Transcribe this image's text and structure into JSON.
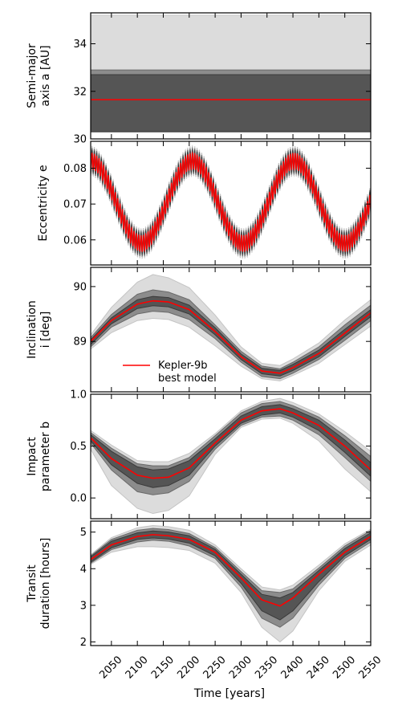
{
  "colors": {
    "outer_band": "#dcdcdc",
    "mid_band": "#8c8c8c",
    "inner_band": "#555555",
    "best_model": "#ff0000",
    "axes": "#000000"
  },
  "x_axis": {
    "label": "Time [years]",
    "range": [
      2010,
      2550
    ],
    "ticks": [
      2050,
      2100,
      2150,
      2200,
      2250,
      2300,
      2350,
      2400,
      2450,
      2500,
      2550
    ],
    "tick_labels": [
      "2050",
      "2100",
      "2150",
      "2200",
      "2250",
      "2300",
      "2350",
      "2400",
      "2450",
      "2500",
      "2550"
    ]
  },
  "legend": {
    "label_line1": "Kepler-9b",
    "label_line2": "best model",
    "panel": "inclination",
    "placement": "lower-left"
  },
  "chart_data": [
    {
      "id": "semimajor",
      "type": "area",
      "ylabel_line1": "Semi-major",
      "ylabel_line2": "axis a [AU]",
      "ylim": [
        30.0,
        35.3
      ],
      "yticks": [
        30,
        32,
        34
      ],
      "ytick_labels": [
        "30",
        "32",
        "34"
      ],
      "x": [
        2010,
        2550
      ],
      "best": [
        31.65,
        31.65
      ],
      "inner": [
        [
          30.3,
          32.7
        ],
        [
          30.3,
          32.7
        ]
      ],
      "mid": [
        [
          30.3,
          32.9
        ],
        [
          30.3,
          32.9
        ]
      ],
      "outer": [
        [
          30.3,
          35.2
        ],
        [
          30.3,
          35.2
        ]
      ]
    },
    {
      "id": "eccentricity",
      "type": "area",
      "ylabel_line1": "",
      "ylabel_line2": "Eccentricity e",
      "ylim": [
        0.053,
        0.0875
      ],
      "yticks": [
        0.06,
        0.07,
        0.08
      ],
      "ytick_labels": [
        "0.06",
        "0.07",
        "0.08"
      ],
      "oscillation": {
        "center": 0.0705,
        "long_amplitude": 0.0115,
        "long_period_years": 196,
        "long_phase_year": 2108,
        "short_amplitude": 0.0023,
        "short_period_years": 4.5
      },
      "band_halfwidths": {
        "inner": 0.0008,
        "mid": 0.0013,
        "outer": 0.0019
      }
    },
    {
      "id": "inclination",
      "type": "area",
      "ylabel_line1": "Inclination",
      "ylabel_line2": "i [deg]",
      "ylim": [
        88.08,
        90.35
      ],
      "yticks": [
        89,
        90
      ],
      "ytick_labels": [
        "89",
        "90"
      ],
      "x": [
        2010,
        2050,
        2100,
        2130,
        2160,
        2200,
        2250,
        2300,
        2340,
        2375,
        2400,
        2450,
        2500,
        2550
      ],
      "best": [
        89.0,
        89.38,
        89.68,
        89.74,
        89.72,
        89.58,
        89.18,
        88.72,
        88.46,
        88.42,
        88.52,
        88.78,
        89.15,
        89.52
      ],
      "inner": [
        [
          88.94,
          89.03
        ],
        [
          89.32,
          89.43
        ],
        [
          89.6,
          89.76
        ],
        [
          89.65,
          89.82
        ],
        [
          89.63,
          89.8
        ],
        [
          89.5,
          89.66
        ],
        [
          89.12,
          89.25
        ],
        [
          88.67,
          88.77
        ],
        [
          88.41,
          88.51
        ],
        [
          88.37,
          88.47
        ],
        [
          88.47,
          88.58
        ],
        [
          88.72,
          88.84
        ],
        [
          89.09,
          89.22
        ],
        [
          89.45,
          89.58
        ]
      ],
      "mid": [
        [
          88.9,
          89.07
        ],
        [
          89.26,
          89.49
        ],
        [
          89.5,
          89.86
        ],
        [
          89.55,
          89.94
        ],
        [
          89.53,
          89.9
        ],
        [
          89.4,
          89.76
        ],
        [
          89.05,
          89.3
        ],
        [
          88.62,
          88.82
        ],
        [
          88.36,
          88.55
        ],
        [
          88.32,
          88.5
        ],
        [
          88.42,
          88.62
        ],
        [
          88.67,
          88.9
        ],
        [
          89.02,
          89.3
        ],
        [
          89.38,
          89.66
        ]
      ],
      "outer": [
        [
          88.86,
          89.12
        ],
        [
          89.16,
          89.62
        ],
        [
          89.38,
          90.08
        ],
        [
          89.42,
          90.22
        ],
        [
          89.4,
          90.16
        ],
        [
          89.26,
          89.98
        ],
        [
          88.92,
          89.48
        ],
        [
          88.55,
          88.9
        ],
        [
          88.32,
          88.6
        ],
        [
          88.28,
          88.56
        ],
        [
          88.38,
          88.68
        ],
        [
          88.6,
          88.97
        ],
        [
          88.94,
          89.39
        ],
        [
          89.28,
          89.76
        ]
      ]
    },
    {
      "id": "impact",
      "type": "area",
      "ylabel_line1": "Impact",
      "ylabel_line2": "parameter b",
      "ylim": [
        -0.2,
        1.0
      ],
      "yticks": [
        0.0,
        0.5,
        1.0
      ],
      "ytick_labels": [
        "0.0",
        "0.5",
        "1.0"
      ],
      "x": [
        2010,
        2050,
        2100,
        2130,
        2160,
        2200,
        2250,
        2300,
        2340,
        2375,
        2400,
        2450,
        2500,
        2550
      ],
      "best": [
        0.58,
        0.38,
        0.22,
        0.19,
        0.2,
        0.29,
        0.53,
        0.75,
        0.84,
        0.86,
        0.82,
        0.7,
        0.5,
        0.27
      ],
      "inner": [
        [
          0.55,
          0.61
        ],
        [
          0.32,
          0.45
        ],
        [
          0.14,
          0.3
        ],
        [
          0.1,
          0.27
        ],
        [
          0.12,
          0.28
        ],
        [
          0.22,
          0.36
        ],
        [
          0.5,
          0.57
        ],
        [
          0.72,
          0.79
        ],
        [
          0.8,
          0.88
        ],
        [
          0.82,
          0.9
        ],
        [
          0.78,
          0.86
        ],
        [
          0.65,
          0.75
        ],
        [
          0.44,
          0.56
        ],
        [
          0.21,
          0.34
        ]
      ],
      "mid": [
        [
          0.53,
          0.63
        ],
        [
          0.27,
          0.48
        ],
        [
          0.06,
          0.33
        ],
        [
          0.03,
          0.31
        ],
        [
          0.05,
          0.31
        ],
        [
          0.16,
          0.39
        ],
        [
          0.47,
          0.6
        ],
        [
          0.7,
          0.82
        ],
        [
          0.78,
          0.91
        ],
        [
          0.79,
          0.93
        ],
        [
          0.75,
          0.89
        ],
        [
          0.61,
          0.78
        ],
        [
          0.39,
          0.6
        ],
        [
          0.16,
          0.4
        ]
      ],
      "outer": [
        [
          0.47,
          0.65
        ],
        [
          0.12,
          0.51
        ],
        [
          -0.1,
          0.36
        ],
        [
          -0.15,
          0.35
        ],
        [
          -0.12,
          0.35
        ],
        [
          0.02,
          0.43
        ],
        [
          0.42,
          0.62
        ],
        [
          0.68,
          0.84
        ],
        [
          0.76,
          0.93
        ],
        [
          0.77,
          0.96
        ],
        [
          0.72,
          0.92
        ],
        [
          0.55,
          0.81
        ],
        [
          0.28,
          0.64
        ],
        [
          0.06,
          0.45
        ]
      ]
    },
    {
      "id": "duration",
      "type": "area",
      "ylabel_line1": "Transit",
      "ylabel_line2": "duration [hours]",
      "ylim": [
        1.9,
        5.3
      ],
      "yticks": [
        2,
        3,
        4,
        5
      ],
      "ytick_labels": [
        "2",
        "3",
        "4",
        "5"
      ],
      "x": [
        2010,
        2050,
        2100,
        2130,
        2160,
        2200,
        2250,
        2300,
        2340,
        2375,
        2400,
        2450,
        2500,
        2550
      ],
      "best": [
        4.25,
        4.65,
        4.88,
        4.93,
        4.9,
        4.8,
        4.45,
        3.75,
        3.15,
        2.98,
        3.2,
        3.85,
        4.45,
        4.88
      ],
      "inner": [
        [
          4.18,
          4.32
        ],
        [
          4.57,
          4.75
        ],
        [
          4.8,
          4.98
        ],
        [
          4.84,
          5.03
        ],
        [
          4.81,
          5.0
        ],
        [
          4.7,
          4.9
        ],
        [
          4.35,
          4.53
        ],
        [
          3.6,
          3.85
        ],
        [
          2.85,
          3.3
        ],
        [
          2.6,
          3.2
        ],
        [
          2.85,
          3.35
        ],
        [
          3.65,
          3.95
        ],
        [
          4.35,
          4.55
        ],
        [
          4.8,
          4.98
        ]
      ],
      "mid": [
        [
          4.15,
          4.35
        ],
        [
          4.52,
          4.8
        ],
        [
          4.73,
          5.05
        ],
        [
          4.78,
          5.1
        ],
        [
          4.75,
          5.07
        ],
        [
          4.62,
          4.96
        ],
        [
          4.28,
          4.58
        ],
        [
          3.5,
          3.92
        ],
        [
          2.65,
          3.4
        ],
        [
          2.4,
          3.35
        ],
        [
          2.65,
          3.45
        ],
        [
          3.55,
          4.02
        ],
        [
          4.28,
          4.62
        ],
        [
          4.73,
          5.04
        ]
      ],
      "outer": [
        [
          4.12,
          4.38
        ],
        [
          4.45,
          4.85
        ],
        [
          4.6,
          5.12
        ],
        [
          4.6,
          5.18
        ],
        [
          4.58,
          5.15
        ],
        [
          4.5,
          5.05
        ],
        [
          4.15,
          4.65
        ],
        [
          3.35,
          4.0
        ],
        [
          2.4,
          3.5
        ],
        [
          2.0,
          3.42
        ],
        [
          2.3,
          3.55
        ],
        [
          3.4,
          4.1
        ],
        [
          4.2,
          4.68
        ],
        [
          4.65,
          5.08
        ]
      ]
    }
  ]
}
